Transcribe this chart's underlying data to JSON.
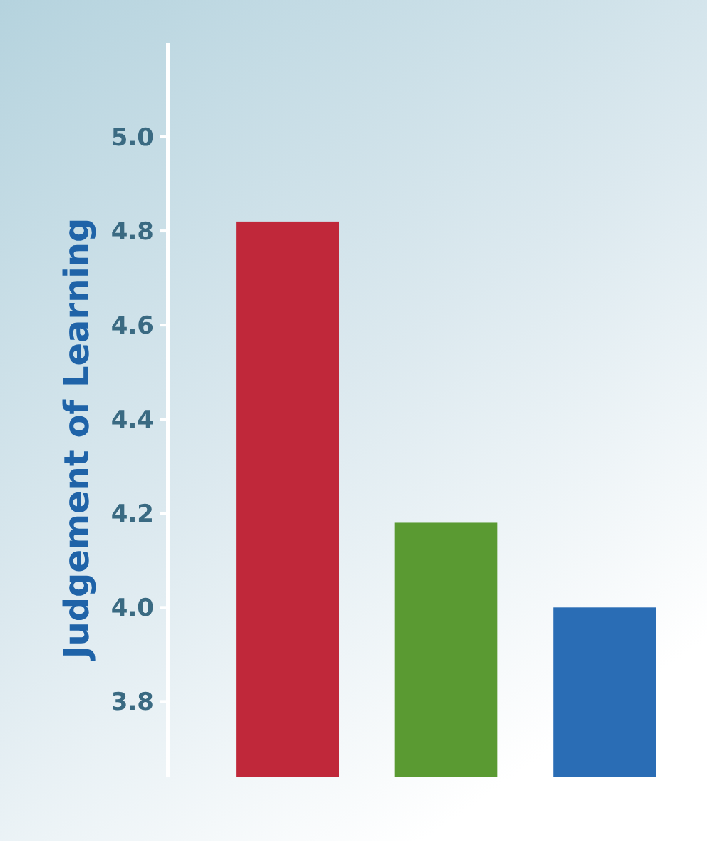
{
  "chart_data": {
    "type": "bar",
    "ylabel": "Judgement of Learning",
    "categories": [
      null,
      null,
      null
    ],
    "values": [
      4.82,
      4.18,
      4.0
    ],
    "colors": [
      "#c0283a",
      "#5a9a32",
      "#2a6db5"
    ],
    "ylim": [
      3.64,
      5.2
    ],
    "yticks": [
      3.8,
      {
        "value": 4,
        "label": "4.0"
      },
      4.2,
      4.4,
      4.6,
      4.8,
      {
        "value": 5,
        "label": "5.0"
      }
    ],
    "tick_labels": "y",
    "grid": false
  }
}
